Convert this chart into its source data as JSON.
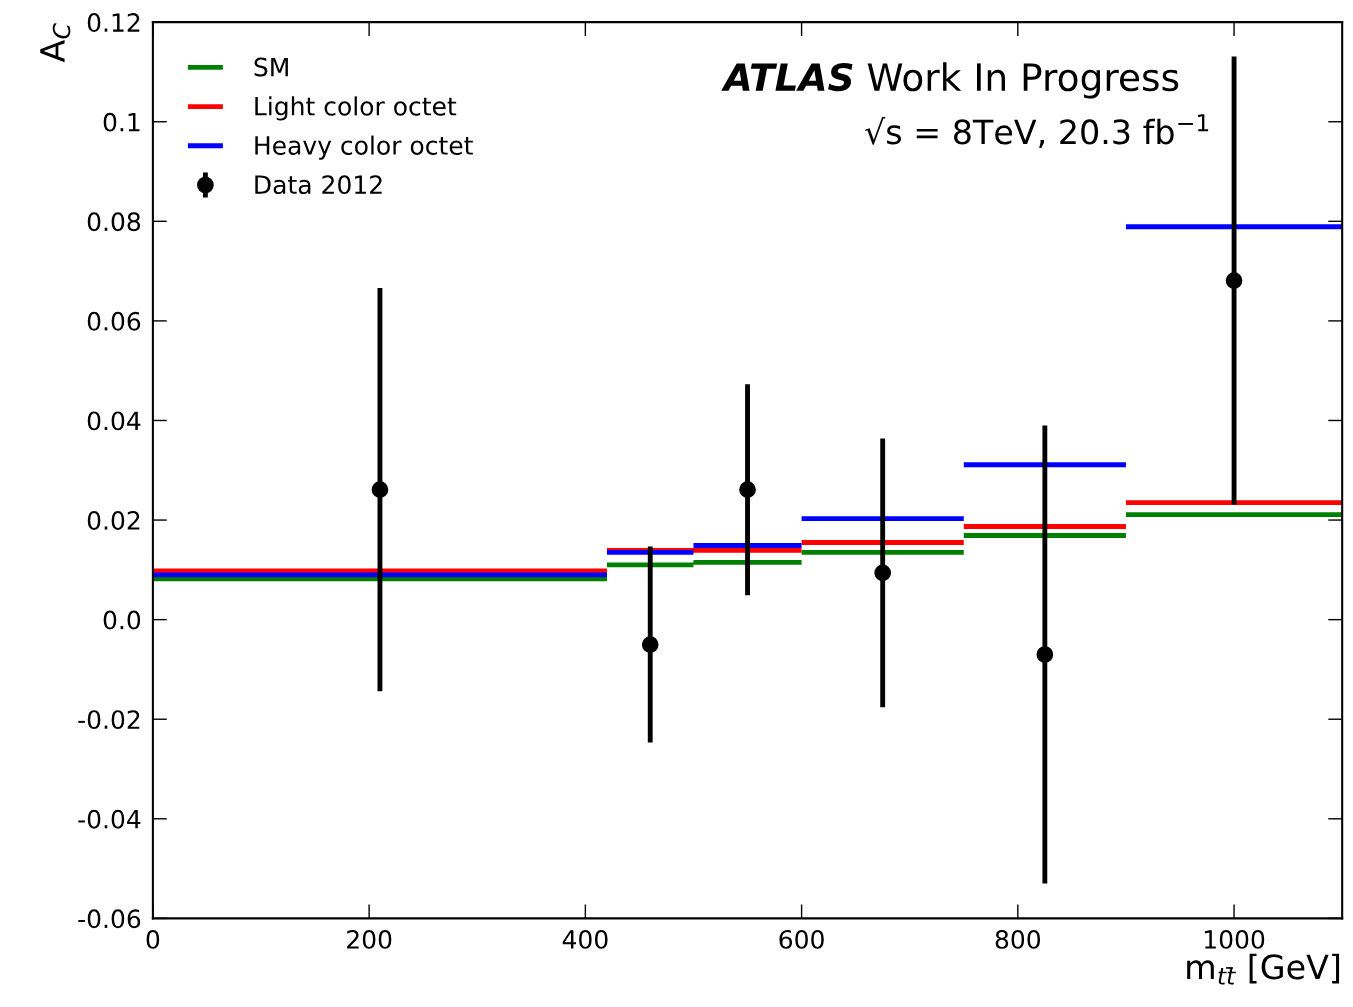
{
  "chart_data": {
    "type": "line",
    "xlabel": "m$_{tt̄}$ [GeV]",
    "ylabel": "A$_{C}$",
    "annotations": [
      "ATLAS",
      "Work In Progress",
      "√s = 8TeV, 20.3 fb$^{−1}$"
    ],
    "series": [
      {
        "name": "SM",
        "color": "#008000",
        "x": [
          0,
          420,
          null,
          420,
          500,
          null,
          500,
          600,
          null,
          600,
          750,
          null,
          750,
          900,
          null,
          900,
          1100
        ],
        "values": [
          0.0082,
          0.0082,
          null,
          0.011,
          0.011,
          null,
          0.0115,
          0.0115,
          null,
          0.0135,
          0.0135,
          null,
          0.0169,
          0.0169,
          null,
          0.0211,
          0.0211
        ]
      },
      {
        "name": "Light color octet",
        "color": "#ff0000",
        "x": [
          0,
          420,
          null,
          420,
          500,
          null,
          500,
          600,
          null,
          600,
          750,
          null,
          750,
          900,
          null,
          900,
          1100
        ],
        "values": [
          0.0098,
          0.0098,
          null,
          0.0139,
          0.0139,
          null,
          0.0139,
          0.0139,
          null,
          0.0155,
          0.0155,
          null,
          0.0187,
          0.0187,
          null,
          0.0235,
          0.0235
        ]
      },
      {
        "name": "Heavy color octet",
        "color": "#0000ff",
        "x": [
          0,
          420,
          null,
          420,
          500,
          null,
          500,
          600,
          null,
          600,
          750,
          null,
          750,
          900,
          null,
          900,
          1100
        ],
        "values": [
          0.009,
          0.009,
          null,
          0.0135,
          0.0135,
          null,
          0.0149,
          0.0149,
          null,
          0.0203,
          0.0203,
          null,
          0.0311,
          0.0311,
          null,
          0.0789,
          0.0789
        ]
      },
      {
        "name": "Data 2012",
        "type": "scatter",
        "color": "#000000",
        "marker": "circle",
        "x": [
          210,
          460,
          550,
          675,
          825,
          1000
        ],
        "values": [
          0.0261,
          -0.005,
          0.0261,
          0.0094,
          -0.007,
          0.0681
        ],
        "errors": [
          0.0405,
          0.0197,
          0.0212,
          0.027,
          0.046,
          0.045
        ]
      }
    ],
    "xlim": [
      0,
      1100
    ],
    "xticks": [
      0,
      200,
      400,
      600,
      800,
      1000
    ],
    "ylim": [
      -0.06,
      0.12
    ],
    "yticks": [
      {
        "value": -0.06,
        "label": "-0.06"
      },
      {
        "value": -0.04,
        "label": "-0.04"
      },
      {
        "value": -0.02,
        "label": "-0.02"
      },
      {
        "value": 0,
        "label": "0.0"
      },
      {
        "value": 0.02,
        "label": "0.02"
      },
      {
        "value": 0.04,
        "label": "0.04"
      },
      {
        "value": 0.06,
        "label": "0.06"
      },
      {
        "value": 0.08,
        "label": "0.08"
      },
      {
        "value": 0.1,
        "label": "0.1"
      },
      {
        "value": 0.12,
        "label": "0.12"
      }
    ],
    "grid": false,
    "legend": "top left"
  }
}
